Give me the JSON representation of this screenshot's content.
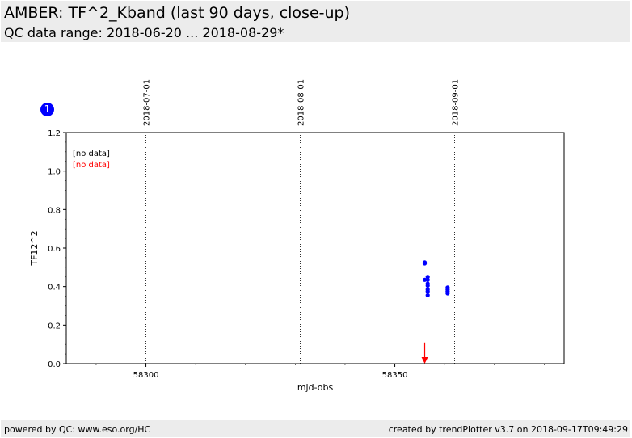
{
  "header": {
    "title": "AMBER: TF^2_Kband (last 90 days, close-up)",
    "subtitle": "QC data range: 2018-06-20 ... 2018-08-29*"
  },
  "badge": {
    "label": "1",
    "color": "#0000ff"
  },
  "footer": {
    "left": "powered by QC: www.eso.org/HC",
    "right": "created by trendPlotter v3.7 on 2018-09-17T09:49:29"
  },
  "legend": {
    "item1": {
      "label": "[no data]",
      "color": "#000000"
    },
    "item2": {
      "label": "[no data]",
      "color": "#ff0000"
    }
  },
  "chart_data": {
    "type": "scatter",
    "xlabel": "mjd-obs",
    "ylabel": "TF12^2",
    "xlim": [
      58284,
      58384
    ],
    "ylim": [
      0,
      1.2
    ],
    "xticks": [
      58300,
      58350
    ],
    "yticks": [
      0.0,
      0.2,
      0.4,
      0.6,
      0.8,
      1.0,
      1.2
    ],
    "ytick_labels": [
      "0.0",
      "0.2",
      "0.4",
      "0.6",
      "0.8",
      "1.0",
      "1.2"
    ],
    "date_markers": [
      {
        "label": "2018-07-01",
        "x": 58300
      },
      {
        "label": "2018-08-01",
        "x": 58331
      },
      {
        "label": "2018-09-01",
        "x": 58362
      }
    ],
    "series": [
      {
        "color": "#0000ff",
        "points": [
          {
            "x": 58356.0,
            "y": 0.525
          },
          {
            "x": 58356.0,
            "y": 0.52
          },
          {
            "x": 58356.0,
            "y": 0.435
          },
          {
            "x": 58356.6,
            "y": 0.45
          },
          {
            "x": 58356.6,
            "y": 0.435
          },
          {
            "x": 58356.6,
            "y": 0.415
          },
          {
            "x": 58356.6,
            "y": 0.405
          },
          {
            "x": 58356.6,
            "y": 0.385
          },
          {
            "x": 58356.6,
            "y": 0.375
          },
          {
            "x": 58356.6,
            "y": 0.355
          },
          {
            "x": 58360.6,
            "y": 0.395
          },
          {
            "x": 58360.6,
            "y": 0.385
          },
          {
            "x": 58360.6,
            "y": 0.375
          },
          {
            "x": 58360.6,
            "y": 0.365
          }
        ]
      },
      {
        "color": "#ff0000",
        "marker": "down-arrow",
        "points": [
          {
            "x": 58356.0,
            "y": 0.11
          }
        ]
      }
    ]
  }
}
